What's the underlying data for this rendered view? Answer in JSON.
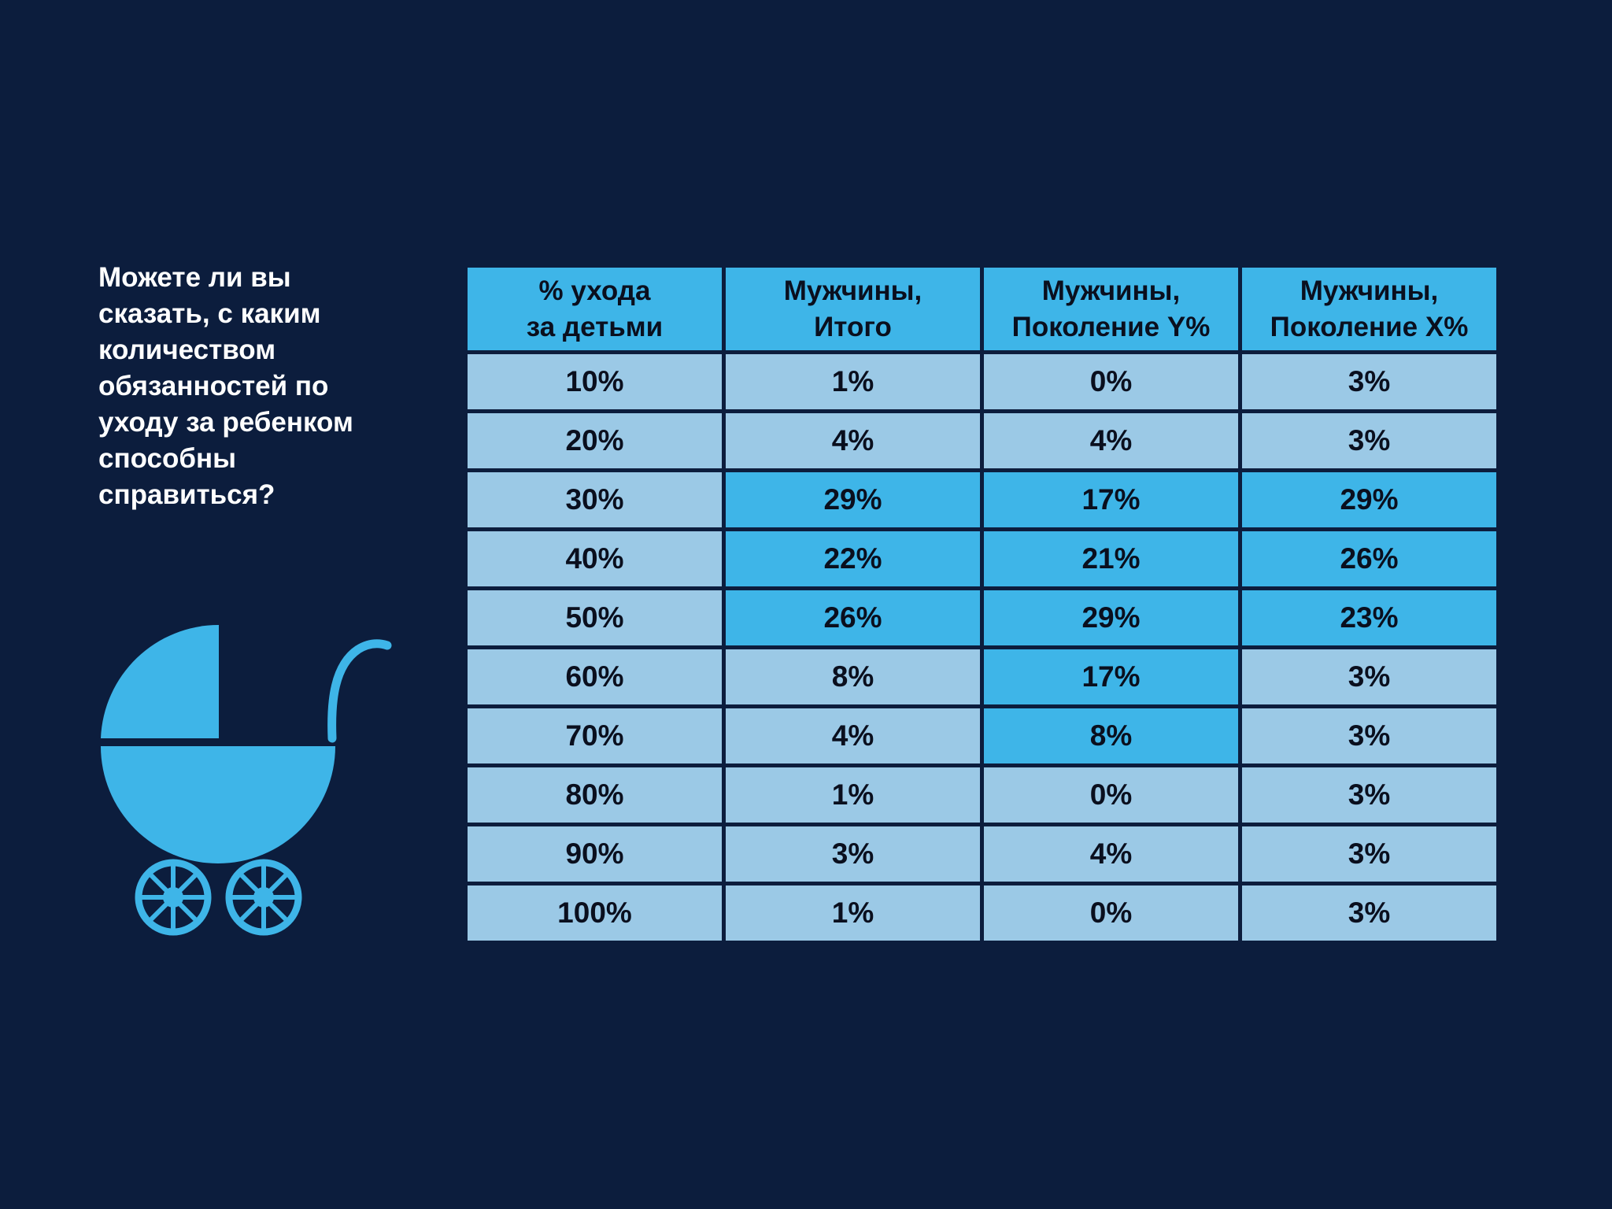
{
  "question": {
    "lines": [
      "Можете ли вы",
      "сказать, с каким",
      "количеством",
      "обязанностей по",
      "уходу за ребенком",
      "способны",
      "справиться?"
    ]
  },
  "icon": "baby-stroller-icon",
  "colors": {
    "background": "#0c1d3d",
    "header": "#3eb5e8",
    "cell_light": "#9bc9e6",
    "cell_highlight": "#3eb5e8",
    "text_dark": "#0a0f1e",
    "text_light": "#ffffff"
  },
  "chart_data": {
    "type": "table",
    "columns": [
      [
        "% ухода",
        "за детьми"
      ],
      [
        "Мужчины,",
        "Итого"
      ],
      [
        "Мужчины,",
        "Поколение Y%"
      ],
      [
        "Мужчины,",
        "Поколение X%"
      ]
    ],
    "rows": [
      {
        "cells": [
          "10%",
          "1%",
          "0%",
          "3%"
        ],
        "highlight": [
          false,
          false,
          false,
          false
        ]
      },
      {
        "cells": [
          "20%",
          "4%",
          "4%",
          "3%"
        ],
        "highlight": [
          false,
          false,
          false,
          false
        ]
      },
      {
        "cells": [
          "30%",
          "29%",
          "17%",
          "29%"
        ],
        "highlight": [
          false,
          true,
          true,
          true
        ]
      },
      {
        "cells": [
          "40%",
          "22%",
          "21%",
          "26%"
        ],
        "highlight": [
          false,
          true,
          true,
          true
        ]
      },
      {
        "cells": [
          "50%",
          "26%",
          "29%",
          "23%"
        ],
        "highlight": [
          false,
          true,
          true,
          true
        ]
      },
      {
        "cells": [
          "60%",
          "8%",
          "17%",
          "3%"
        ],
        "highlight": [
          false,
          false,
          true,
          false
        ]
      },
      {
        "cells": [
          "70%",
          "4%",
          "8%",
          "3%"
        ],
        "highlight": [
          false,
          false,
          true,
          false
        ]
      },
      {
        "cells": [
          "80%",
          "1%",
          "0%",
          "3%"
        ],
        "highlight": [
          false,
          false,
          false,
          false
        ]
      },
      {
        "cells": [
          "90%",
          "3%",
          "4%",
          "3%"
        ],
        "highlight": [
          false,
          false,
          false,
          false
        ]
      },
      {
        "cells": [
          "100%",
          "1%",
          "0%",
          "3%"
        ],
        "highlight": [
          false,
          false,
          false,
          false
        ]
      }
    ]
  }
}
